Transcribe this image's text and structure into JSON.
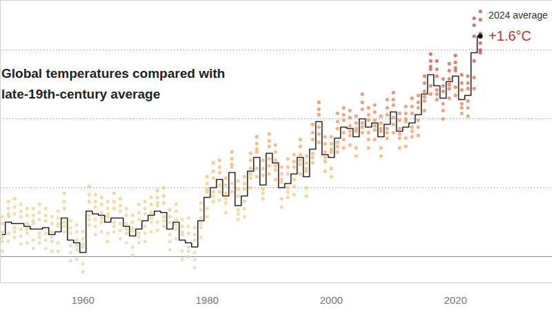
{
  "chart_data": {
    "type": "line",
    "title": "Global temperatures compared with late-19th-century average",
    "annotations": [
      "2024 average",
      "+1.6°C"
    ],
    "x": [
      1947,
      1948,
      1949,
      1950,
      1951,
      1952,
      1953,
      1954,
      1955,
      1956,
      1957,
      1958,
      1959,
      1960,
      1961,
      1962,
      1963,
      1964,
      1965,
      1966,
      1967,
      1968,
      1969,
      1970,
      1971,
      1972,
      1973,
      1974,
      1975,
      1976,
      1977,
      1978,
      1979,
      1980,
      1981,
      1982,
      1983,
      1984,
      1985,
      1986,
      1987,
      1988,
      1989,
      1990,
      1991,
      1992,
      1993,
      1994,
      1995,
      1996,
      1997,
      1998,
      1999,
      2000,
      2001,
      2002,
      2003,
      2004,
      2005,
      2006,
      2007,
      2008,
      2009,
      2010,
      2011,
      2012,
      2013,
      2014,
      2015,
      2016,
      2017,
      2018,
      2019,
      2020,
      2021,
      2022,
      2023,
      2024
    ],
    "values": [
      0.16,
      0.25,
      0.24,
      0.24,
      0.22,
      0.2,
      0.2,
      0.21,
      0.16,
      0.18,
      0.28,
      0.12,
      0.1,
      0.03,
      0.33,
      0.31,
      0.3,
      0.25,
      0.28,
      0.28,
      0.22,
      0.15,
      0.2,
      0.26,
      0.3,
      0.33,
      0.32,
      0.2,
      0.25,
      0.12,
      0.1,
      0.07,
      0.26,
      0.43,
      0.5,
      0.56,
      0.44,
      0.61,
      0.37,
      0.44,
      0.62,
      0.72,
      0.52,
      0.75,
      0.68,
      0.5,
      0.53,
      0.6,
      0.72,
      0.58,
      0.78,
      0.98,
      0.74,
      0.72,
      0.86,
      0.94,
      0.93,
      0.87,
      1.0,
      0.94,
      0.97,
      0.87,
      0.96,
      1.05,
      0.91,
      0.94,
      0.97,
      1.03,
      1.18,
      1.32,
      1.24,
      1.15,
      1.27,
      1.31,
      1.14,
      1.17,
      1.48,
      1.6
    ],
    "color": "#222222",
    "line_style": "step",
    "monthly": [
      [
        0.04,
        0.11,
        0.18,
        0.24,
        0.29,
        0.14
      ],
      [
        0.35,
        0.17,
        0.29,
        0.11,
        0.31,
        0.4
      ],
      [
        0.21,
        0.36,
        0.14,
        0.31,
        0.18,
        0.42
      ],
      [
        0.29,
        0.09,
        0.33,
        0.2,
        0.38,
        0.15
      ],
      [
        0.1,
        0.17,
        0.24,
        0.3,
        0.35,
        0.2
      ],
      [
        0.3,
        0.12,
        0.24,
        0.06,
        0.26,
        0.35
      ],
      [
        0.17,
        0.32,
        0.1,
        0.27,
        0.14,
        0.38
      ],
      [
        0.26,
        0.06,
        0.3,
        0.17,
        0.35,
        0.12
      ],
      [
        0.04,
        0.11,
        0.18,
        0.24,
        0.29,
        0.14
      ],
      [
        0.28,
        0.1,
        0.22,
        0.04,
        0.24,
        0.33
      ],
      [
        0.25,
        0.4,
        0.18,
        0.35,
        0.22,
        0.46
      ],
      [
        0.17,
        -0.03,
        0.21,
        0.08,
        0.26,
        0.03
      ],
      [
        -0.02,
        0.05,
        0.12,
        0.18,
        0.23,
        0.08
      ],
      [
        0.13,
        -0.05,
        0.07,
        -0.11,
        0.09,
        0.18
      ],
      [
        0.3,
        0.45,
        0.23,
        0.4,
        0.27,
        0.51
      ],
      [
        0.36,
        0.16,
        0.4,
        0.27,
        0.45,
        0.22
      ],
      [
        0.18,
        0.25,
        0.32,
        0.38,
        0.43,
        0.28
      ],
      [
        0.35,
        0.17,
        0.29,
        0.11,
        0.31,
        0.4
      ],
      [
        0.25,
        0.4,
        0.18,
        0.35,
        0.22,
        0.46
      ],
      [
        0.33,
        0.13,
        0.37,
        0.24,
        0.42,
        0.19
      ],
      [
        0.1,
        0.17,
        0.24,
        0.3,
        0.35,
        0.2
      ],
      [
        0.25,
        0.07,
        0.19,
        0.01,
        0.21,
        0.3
      ],
      [
        0.17,
        0.32,
        0.1,
        0.27,
        0.14,
        0.38
      ],
      [
        0.31,
        0.11,
        0.35,
        0.22,
        0.4,
        0.17
      ],
      [
        0.18,
        0.25,
        0.32,
        0.38,
        0.43,
        0.28
      ],
      [
        0.43,
        0.25,
        0.37,
        0.19,
        0.39,
        0.48
      ],
      [
        0.29,
        0.44,
        0.22,
        0.39,
        0.26,
        0.5
      ],
      [
        0.25,
        0.05,
        0.29,
        0.16,
        0.34,
        0.11
      ],
      [
        0.13,
        0.2,
        0.27,
        0.33,
        0.38,
        0.23
      ],
      [
        0.22,
        0.04,
        0.16,
        -0.02,
        0.18,
        0.27
      ],
      [
        0.07,
        0.22,
        0.0,
        0.17,
        0.04,
        0.28
      ],
      [
        0.12,
        -0.08,
        0.16,
        0.03,
        0.21,
        -0.02
      ],
      [
        0.14,
        0.21,
        0.28,
        0.34,
        0.39,
        0.24
      ],
      [
        0.53,
        0.35,
        0.47,
        0.29,
        0.49,
        0.58
      ],
      [
        0.47,
        0.62,
        0.4,
        0.57,
        0.44,
        0.68
      ],
      [
        0.61,
        0.41,
        0.65,
        0.52,
        0.7,
        0.47
      ],
      [
        0.32,
        0.39,
        0.46,
        0.52,
        0.57,
        0.42
      ],
      [
        0.71,
        0.53,
        0.65,
        0.47,
        0.67,
        0.76
      ],
      [
        0.34,
        0.49,
        0.27,
        0.44,
        0.31,
        0.55
      ],
      [
        0.49,
        0.29,
        0.53,
        0.4,
        0.58,
        0.35
      ],
      [
        0.5,
        0.57,
        0.64,
        0.7,
        0.75,
        0.6
      ],
      [
        0.82,
        0.64,
        0.76,
        0.58,
        0.78,
        0.87
      ],
      [
        0.49,
        0.64,
        0.42,
        0.59,
        0.46,
        0.7
      ],
      [
        0.8,
        0.6,
        0.84,
        0.71,
        0.89,
        0.66
      ],
      [
        0.56,
        0.63,
        0.7,
        0.76,
        0.81,
        0.66
      ],
      [
        0.6,
        0.42,
        0.54,
        0.36,
        0.56,
        0.65
      ],
      [
        0.5,
        0.65,
        0.43,
        0.6,
        0.47,
        0.71
      ],
      [
        0.65,
        0.45,
        0.69,
        0.56,
        0.74,
        0.51
      ],
      [
        0.6,
        0.67,
        0.74,
        0.8,
        0.85,
        0.7
      ],
      [
        0.68,
        0.5,
        0.62,
        0.44,
        0.64,
        0.73
      ],
      [
        0.75,
        0.9,
        0.68,
        0.85,
        0.72,
        0.96
      ],
      [
        1.03,
        0.83,
        1.07,
        0.94,
        1.12,
        0.89
      ],
      [
        0.62,
        0.69,
        0.76,
        0.82,
        0.87,
        0.72
      ],
      [
        0.82,
        0.64,
        0.76,
        0.58,
        0.78,
        0.87
      ],
      [
        0.83,
        0.98,
        0.76,
        0.93,
        0.8,
        1.04
      ],
      [
        0.99,
        0.79,
        1.03,
        0.9,
        1.08,
        0.85
      ],
      [
        0.81,
        0.88,
        0.95,
        1.01,
        1.06,
        0.91
      ],
      [
        0.97,
        0.79,
        0.91,
        0.73,
        0.93,
        1.02
      ],
      [
        0.97,
        1.12,
        0.9,
        1.07,
        0.94,
        1.18
      ],
      [
        0.99,
        0.79,
        1.03,
        0.9,
        1.08,
        0.85
      ],
      [
        0.85,
        0.92,
        0.99,
        1.05,
        1.1,
        0.95
      ],
      [
        0.97,
        0.79,
        0.91,
        0.73,
        0.93,
        1.02
      ],
      [
        0.93,
        1.08,
        0.86,
        1.03,
        0.9,
        1.14
      ],
      [
        1.1,
        0.9,
        1.14,
        1.01,
        1.19,
        0.96
      ],
      [
        0.79,
        0.86,
        0.93,
        0.99,
        1.04,
        0.89
      ],
      [
        1.04,
        0.86,
        0.98,
        0.8,
        1.0,
        1.09
      ],
      [
        0.94,
        1.09,
        0.87,
        1.04,
        0.91,
        1.15
      ],
      [
        1.08,
        0.88,
        1.12,
        0.99,
        1.17,
        0.94
      ],
      [
        1.06,
        1.13,
        1.2,
        1.26,
        1.31,
        1.16
      ],
      [
        1.42,
        1.24,
        1.36,
        1.18,
        1.38,
        1.47
      ],
      [
        1.21,
        1.36,
        1.14,
        1.31,
        1.18,
        1.42
      ],
      [
        1.2,
        1.0,
        1.24,
        1.11,
        1.29,
        1.06
      ],
      [
        1.15,
        1.22,
        1.29,
        1.35,
        1.4,
        1.25
      ],
      [
        1.41,
        1.23,
        1.35,
        1.17,
        1.37,
        1.46
      ],
      [
        1.11,
        1.26,
        1.04,
        1.21,
        1.08,
        1.32
      ],
      [
        1.22,
        1.02,
        1.26,
        1.13,
        1.31,
        1.08
      ],
      [
        1.22,
        1.3,
        1.42,
        1.6,
        1.73,
        1.68
      ],
      [
        1.78,
        1.72,
        1.62,
        1.55,
        1.5,
        1.48
      ]
    ],
    "xlim": [
      1946.7,
      2035.6
    ],
    "xticks": [
      1960,
      1980,
      2000,
      2020
    ],
    "ylim": [
      -0.19,
      1.86
    ],
    "yticks": [
      0,
      0.5,
      1,
      1.5
    ],
    "grid": true,
    "tick_labels": "x"
  }
}
